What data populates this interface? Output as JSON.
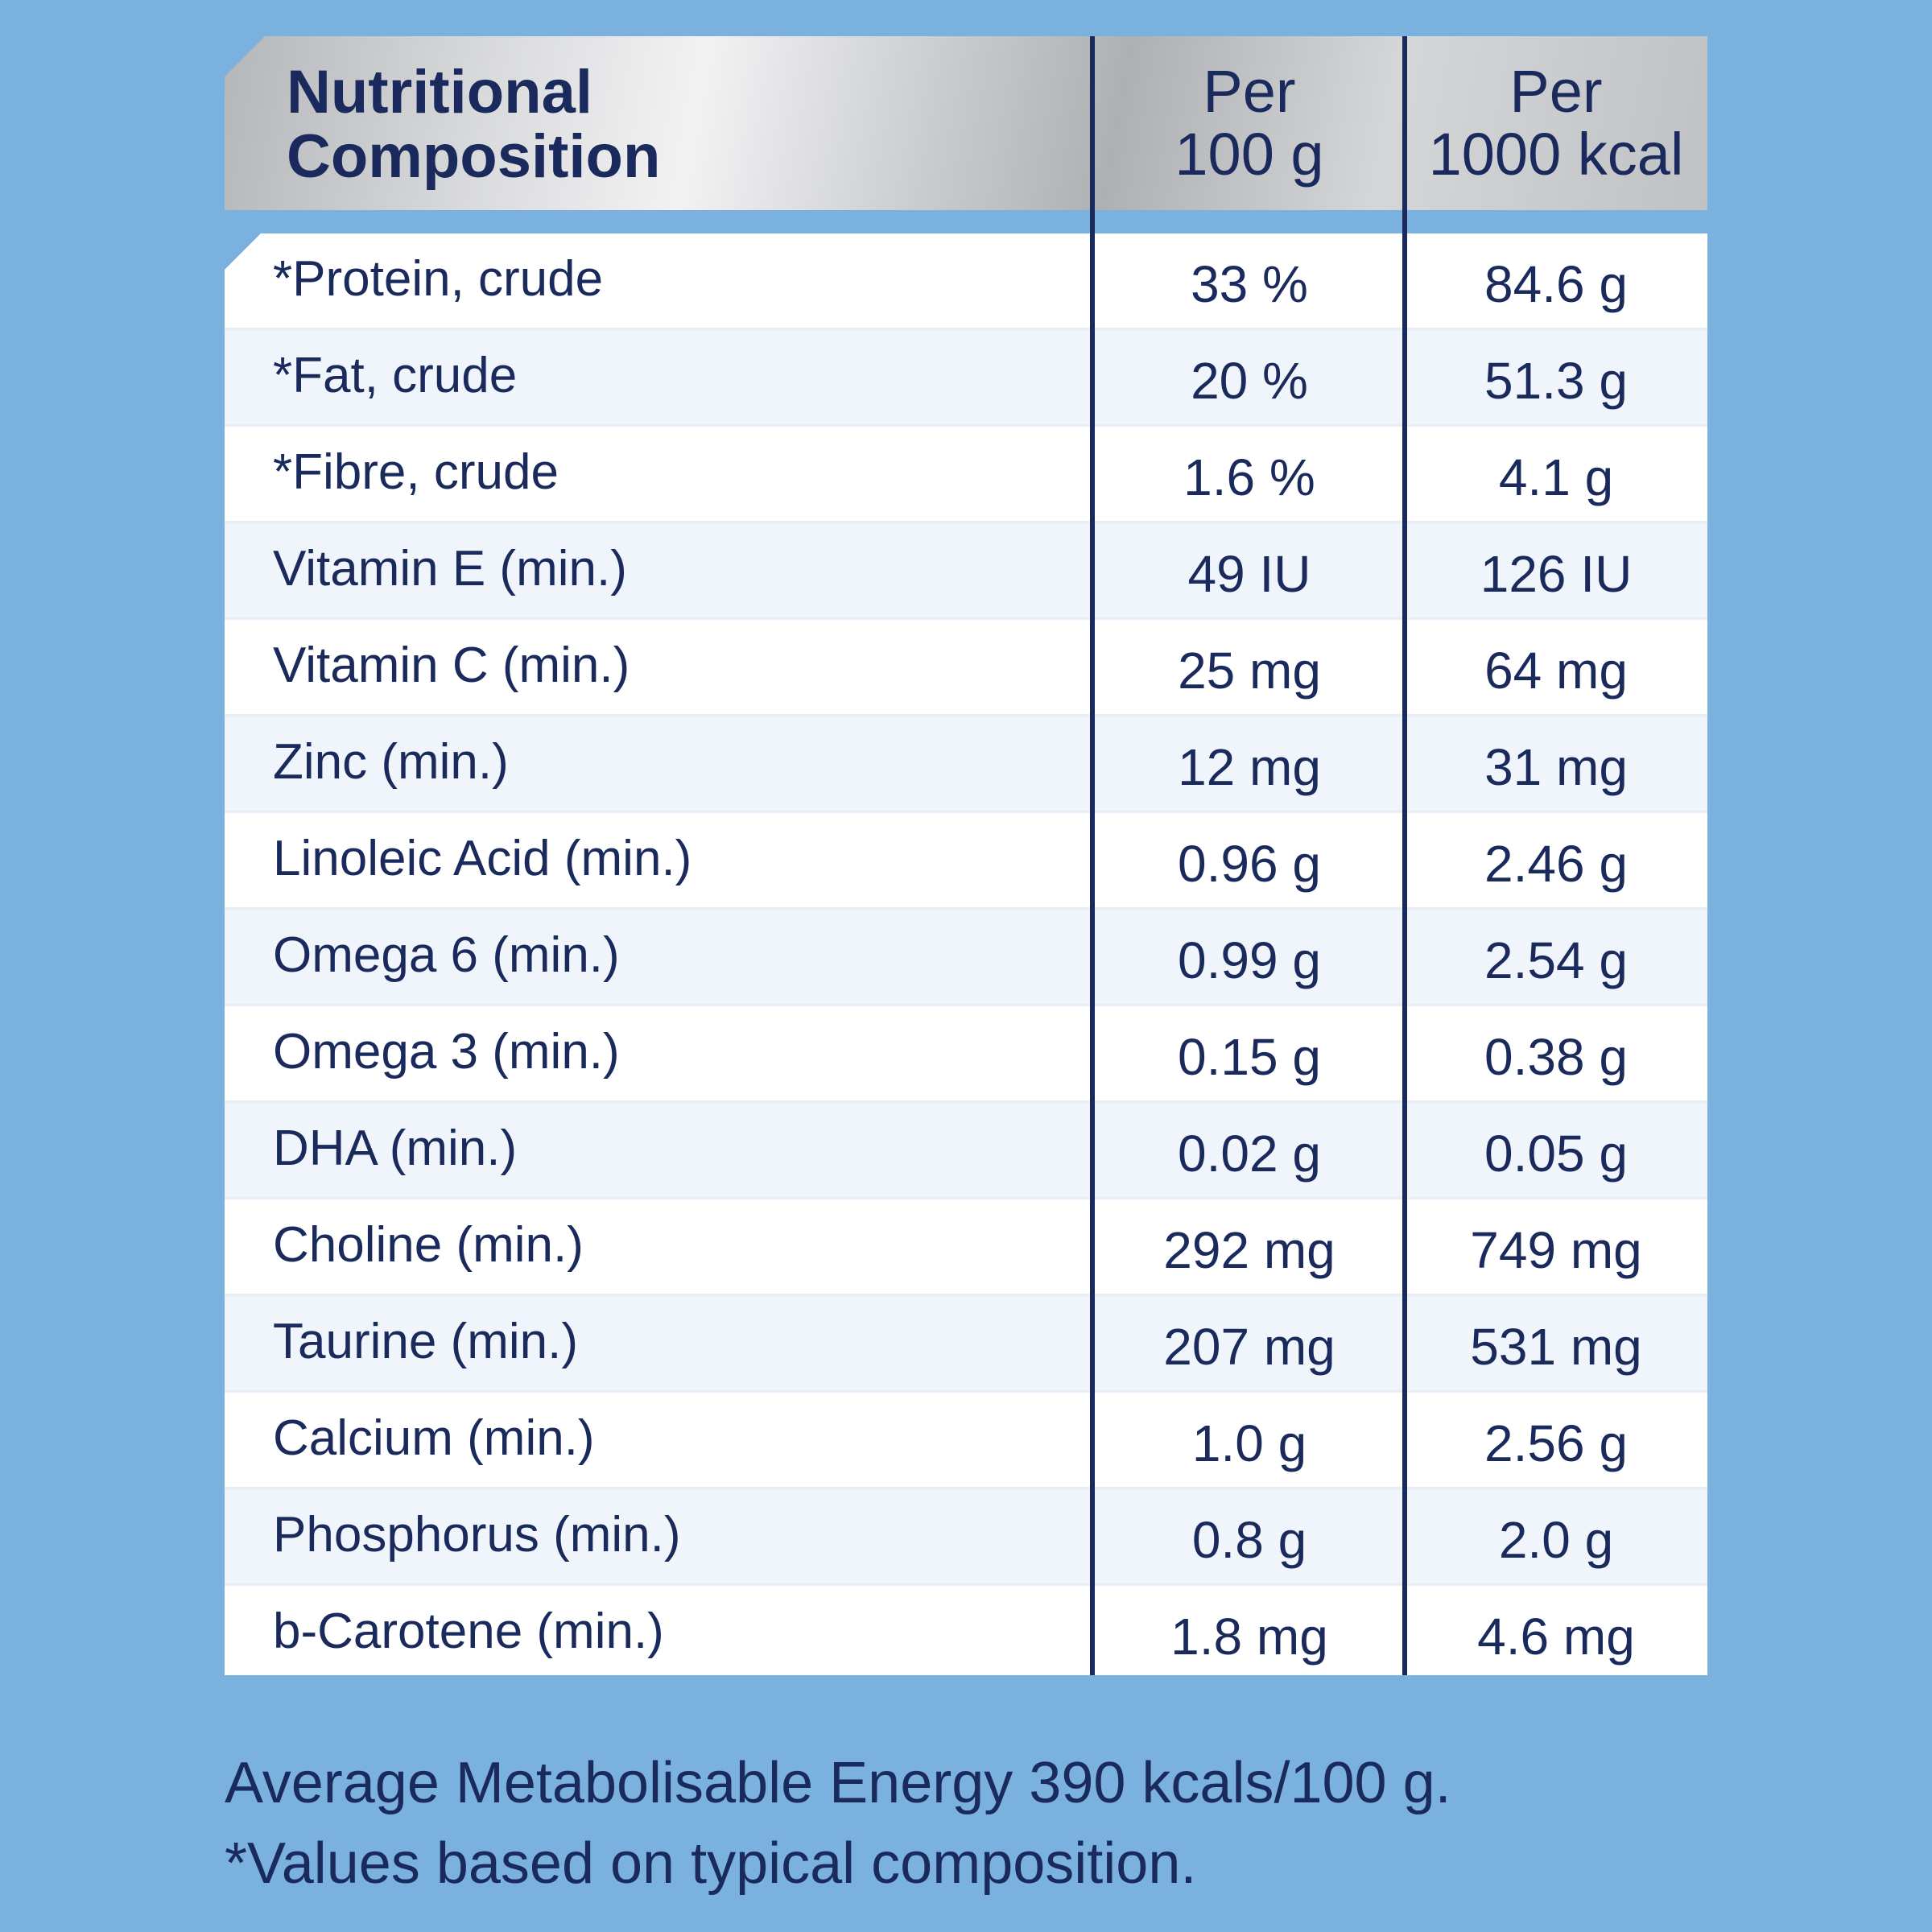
{
  "table": {
    "header": {
      "title_line1": "Nutritional",
      "title_line2": "Composition",
      "col1_line1": "Per",
      "col1_line2": "100 g",
      "col2_line1": "Per",
      "col2_line2": "1000 kcal"
    },
    "rows": [
      {
        "label": "*Protein, crude",
        "per_100g": "33 %",
        "per_1000kcal": "84.6 g"
      },
      {
        "label": "*Fat, crude",
        "per_100g": "20 %",
        "per_1000kcal": "51.3 g"
      },
      {
        "label": "*Fibre, crude",
        "per_100g": "1.6 %",
        "per_1000kcal": "4.1 g"
      },
      {
        "label": "Vitamin E (min.)",
        "per_100g": "49 IU",
        "per_1000kcal": "126 IU"
      },
      {
        "label": "Vitamin C (min.)",
        "per_100g": "25 mg",
        "per_1000kcal": "64 mg"
      },
      {
        "label": "Zinc (min.)",
        "per_100g": "12 mg",
        "per_1000kcal": "31 mg"
      },
      {
        "label": "Linoleic Acid (min.)",
        "per_100g": "0.96 g",
        "per_1000kcal": "2.46 g"
      },
      {
        "label": "Omega 6 (min.)",
        "per_100g": "0.99 g",
        "per_1000kcal": "2.54 g"
      },
      {
        "label": "Omega 3 (min.)",
        "per_100g": "0.15 g",
        "per_1000kcal": "0.38 g"
      },
      {
        "label": "DHA (min.)",
        "per_100g": "0.02 g",
        "per_1000kcal": "0.05 g"
      },
      {
        "label": "Choline (min.)",
        "per_100g": "292 mg",
        "per_1000kcal": "749 mg"
      },
      {
        "label": "Taurine (min.)",
        "per_100g": "207 mg",
        "per_1000kcal": "531 mg"
      },
      {
        "label": "Calcium (min.)",
        "per_100g": "1.0 g",
        "per_1000kcal": "2.56 g"
      },
      {
        "label": "Phosphorus (min.)",
        "per_100g": "0.8 g",
        "per_1000kcal": "2.0 g"
      },
      {
        "label": "b-Carotene (min.)",
        "per_100g": "1.8 mg",
        "per_1000kcal": "4.6 mg"
      }
    ]
  },
  "footer": {
    "energy_note": "Average Metabolisable Energy 390 kcals/100 g.",
    "typical_note": "*Values based on typical composition."
  },
  "colors": {
    "background": "#7ab1de",
    "text": "#1b2a5c",
    "row_alt": "#f0f5fb",
    "header_silver": "#c9cbce"
  }
}
